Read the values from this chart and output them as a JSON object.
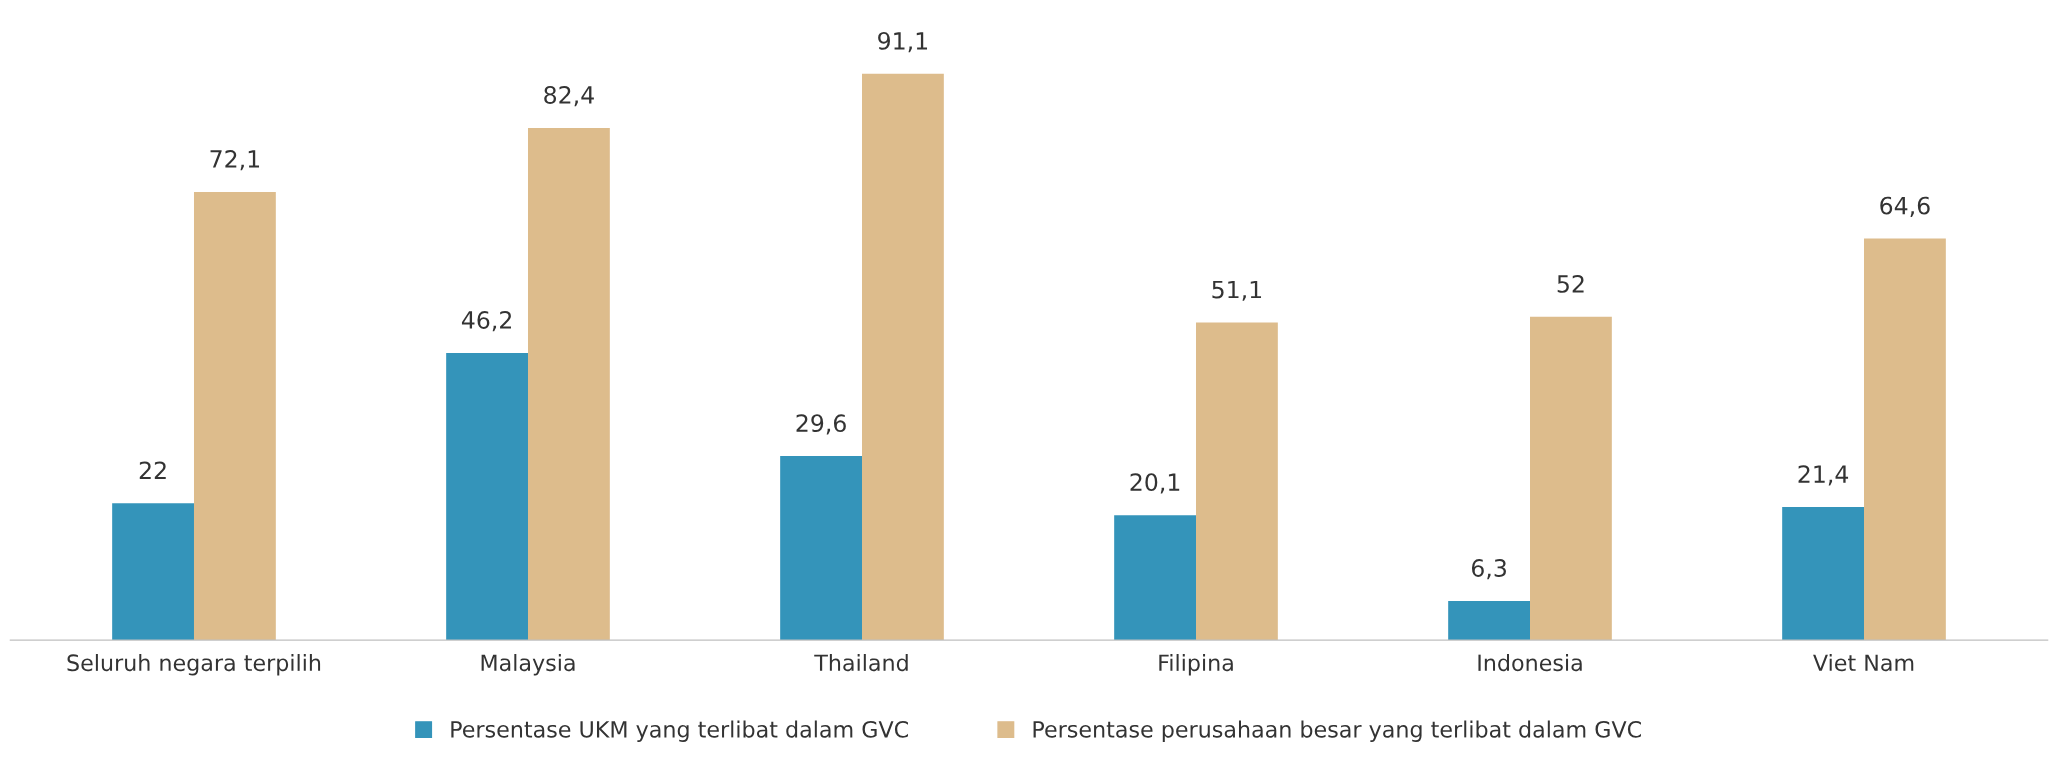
{
  "chart_data": {
    "type": "bar",
    "categories": [
      "Seluruh negara terpilih",
      "Malaysia",
      "Thailand",
      "Filipina",
      "Indonesia",
      "Viet Nam"
    ],
    "series": [
      {
        "name": "Persentase UKM yang terlibat dalam GVC",
        "color": "#3494ba",
        "values": [
          22,
          46.2,
          29.6,
          20.1,
          6.3,
          21.4
        ],
        "value_labels": [
          "22",
          "46,2",
          "29,6",
          "20,1",
          "6,3",
          "21,4"
        ]
      },
      {
        "name": "Persentase perusahaan besar yang terlibat dalam GVC",
        "color": "#ddbc8c",
        "values": [
          72.1,
          82.4,
          91.1,
          51.1,
          52,
          64.6
        ],
        "value_labels": [
          "72,1",
          "82,4",
          "91,1",
          "51,1",
          "52",
          "64,6"
        ]
      }
    ],
    "legend": "bottom",
    "grid": false
  }
}
